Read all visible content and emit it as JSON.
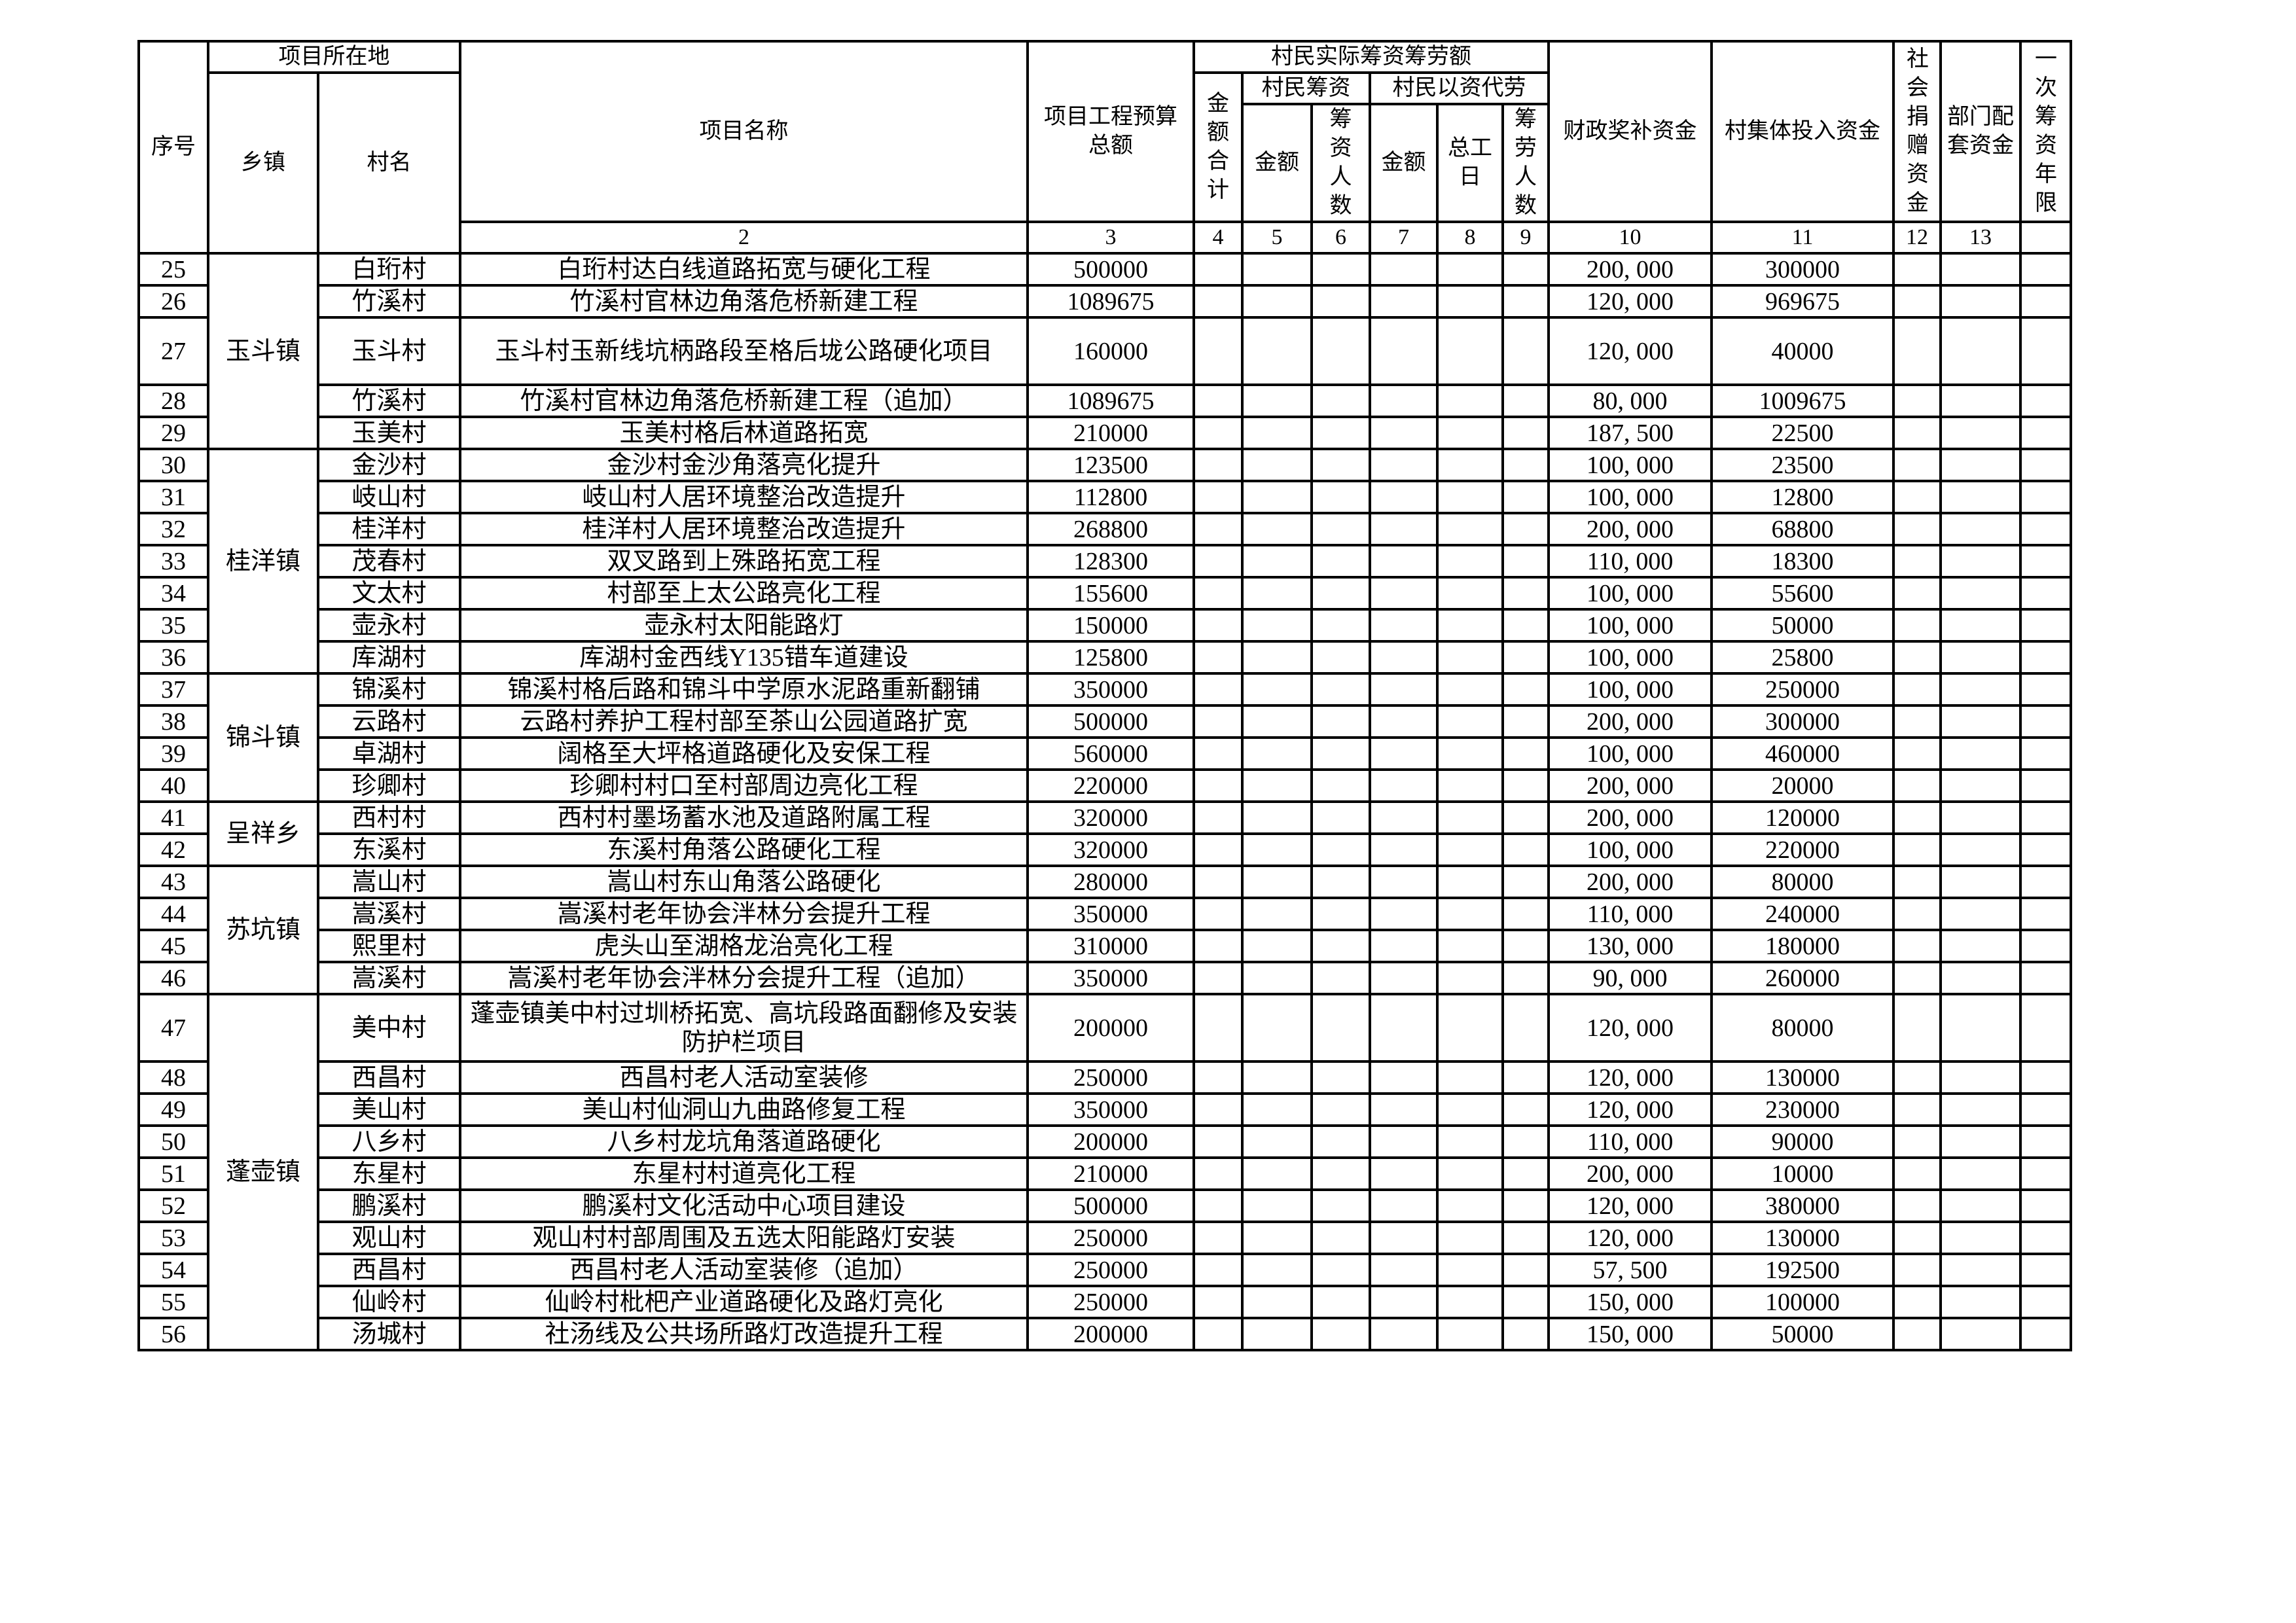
{
  "header": {
    "seq": "序号",
    "location": "项目所在地",
    "town": "乡镇",
    "village": "村名",
    "project": "项目名称",
    "budget": "项目工程预算总额",
    "villager_total": "村民实际筹资筹劳额",
    "amount_total": "金额合计",
    "villager_fund": "村民筹资",
    "labor_sub": "村民以资代劳",
    "amount1": "金额",
    "fund_people": "筹资人数",
    "amount2": "金额",
    "workdays": "总工日",
    "labor_people": "筹劳人数",
    "fiscal": "财政奖补资金",
    "collective": "村集体投入资金",
    "donation": "社会捐赠资金",
    "dept": "部门配套资金",
    "years": "一次筹资年限",
    "col_numbers": [
      "2",
      "3",
      "4",
      "5",
      "6",
      "7",
      "8",
      "9",
      "10",
      "11",
      "12",
      "13",
      ""
    ]
  },
  "towns": [
    {
      "name": "玉斗镇",
      "count": 5
    },
    {
      "name": "桂洋镇",
      "count": 7
    },
    {
      "name": "锦斗镇",
      "count": 4
    },
    {
      "name": "呈祥乡",
      "count": 2
    },
    {
      "name": "苏坑镇",
      "count": 4
    },
    {
      "name": "蓬壶镇",
      "count": 10
    }
  ],
  "rows": [
    {
      "no": "25",
      "village": "白珩村",
      "project": "白珩村达白线道路拓宽与硬化工程",
      "budget": "500000",
      "fiscal": "200, 000",
      "collective": "300000"
    },
    {
      "no": "26",
      "village": "竹溪村",
      "project": "竹溪村官林边角落危桥新建工程",
      "budget": "1089675",
      "fiscal": "120, 000",
      "collective": "969675"
    },
    {
      "no": "27",
      "village": "玉斗村",
      "project": "玉斗村玉新线坑柄路段至格后垅公路硬化项目",
      "budget": "160000",
      "fiscal": "120, 000",
      "collective": "40000",
      "tall": true
    },
    {
      "no": "28",
      "village": "竹溪村",
      "project": "竹溪村官林边角落危桥新建工程（追加）",
      "budget": "1089675",
      "fiscal": "80, 000",
      "collective": "1009675"
    },
    {
      "no": "29",
      "village": "玉美村",
      "project": "玉美村格后林道路拓宽",
      "budget": "210000",
      "fiscal": "187, 500",
      "collective": "22500"
    },
    {
      "no": "30",
      "village": "金沙村",
      "project": "金沙村金沙角落亮化提升",
      "budget": "123500",
      "fiscal": "100, 000",
      "collective": "23500"
    },
    {
      "no": "31",
      "village": "岐山村",
      "project": "岐山村人居环境整治改造提升",
      "budget": "112800",
      "fiscal": "100, 000",
      "collective": "12800"
    },
    {
      "no": "32",
      "village": "桂洋村",
      "project": "桂洋村人居环境整治改造提升",
      "budget": "268800",
      "fiscal": "200, 000",
      "collective": "68800"
    },
    {
      "no": "33",
      "village": "茂春村",
      "project": "双叉路到上殊路拓宽工程",
      "budget": "128300",
      "fiscal": "110, 000",
      "collective": "18300"
    },
    {
      "no": "34",
      "village": "文太村",
      "project": "村部至上太公路亮化工程",
      "budget": "155600",
      "fiscal": "100, 000",
      "collective": "55600"
    },
    {
      "no": "35",
      "village": "壶永村",
      "project": "壶永村太阳能路灯",
      "budget": "150000",
      "fiscal": "100, 000",
      "collective": "50000"
    },
    {
      "no": "36",
      "village": "库湖村",
      "project": "库湖村金西线Y135错车道建设",
      "budget": "125800",
      "fiscal": "100, 000",
      "collective": "25800"
    },
    {
      "no": "37",
      "village": "锦溪村",
      "project": "锦溪村格后路和锦斗中学原水泥路重新翻铺",
      "budget": "350000",
      "fiscal": "100, 000",
      "collective": "250000"
    },
    {
      "no": "38",
      "village": "云路村",
      "project": "云路村养护工程村部至茶山公园道路扩宽",
      "budget": "500000",
      "fiscal": "200, 000",
      "collective": "300000"
    },
    {
      "no": "39",
      "village": "卓湖村",
      "project": "阔格至大坪格道路硬化及安保工程",
      "budget": "560000",
      "fiscal": "100, 000",
      "collective": "460000"
    },
    {
      "no": "40",
      "village": "珍卿村",
      "project": "珍卿村村口至村部周边亮化工程",
      "budget": "220000",
      "fiscal": "200, 000",
      "collective": "20000"
    },
    {
      "no": "41",
      "village": "西村村",
      "project": "西村村墨场蓄水池及道路附属工程",
      "budget": "320000",
      "fiscal": "200, 000",
      "collective": "120000"
    },
    {
      "no": "42",
      "village": "东溪村",
      "project": "东溪村角落公路硬化工程",
      "budget": "320000",
      "fiscal": "100, 000",
      "collective": "220000"
    },
    {
      "no": "43",
      "village": "嵩山村",
      "project": "嵩山村东山角落公路硬化",
      "budget": "280000",
      "fiscal": "200, 000",
      "collective": "80000"
    },
    {
      "no": "44",
      "village": "嵩溪村",
      "project": "嵩溪村老年协会泮林分会提升工程",
      "budget": "350000",
      "fiscal": "110, 000",
      "collective": "240000"
    },
    {
      "no": "45",
      "village": "熙里村",
      "project": "虎头山至湖格龙治亮化工程",
      "budget": "310000",
      "fiscal": "130, 000",
      "collective": "180000"
    },
    {
      "no": "46",
      "village": "嵩溪村",
      "project": "嵩溪村老年协会泮林分会提升工程（追加）",
      "budget": "350000",
      "fiscal": "90, 000",
      "collective": "260000"
    },
    {
      "no": "47",
      "village": "美中村",
      "project": "蓬壶镇美中村过圳桥拓宽、高坑段路面翻修及安装防护栏项目",
      "budget": "200000",
      "fiscal": "120, 000",
      "collective": "80000",
      "tall": true
    },
    {
      "no": "48",
      "village": "西昌村",
      "project": "西昌村老人活动室装修",
      "budget": "250000",
      "fiscal": "120, 000",
      "collective": "130000"
    },
    {
      "no": "49",
      "village": "美山村",
      "project": "美山村仙洞山九曲路修复工程",
      "budget": "350000",
      "fiscal": "120, 000",
      "collective": "230000"
    },
    {
      "no": "50",
      "village": "八乡村",
      "project": "八乡村龙坑角落道路硬化",
      "budget": "200000",
      "fiscal": "110, 000",
      "collective": "90000"
    },
    {
      "no": "51",
      "village": "东星村",
      "project": "东星村村道亮化工程",
      "budget": "210000",
      "fiscal": "200, 000",
      "collective": "10000"
    },
    {
      "no": "52",
      "village": "鹏溪村",
      "project": "鹏溪村文化活动中心项目建设",
      "budget": "500000",
      "fiscal": "120, 000",
      "collective": "380000"
    },
    {
      "no": "53",
      "village": "观山村",
      "project": "观山村村部周围及五选太阳能路灯安装",
      "budget": "250000",
      "fiscal": "120, 000",
      "collective": "130000"
    },
    {
      "no": "54",
      "village": "西昌村",
      "project": "西昌村老人活动室装修（追加）",
      "budget": "250000",
      "fiscal": "57, 500",
      "collective": "192500"
    },
    {
      "no": "55",
      "village": "仙岭村",
      "project": "仙岭村枇杷产业道路硬化及路灯亮化",
      "budget": "250000",
      "fiscal": "150, 000",
      "collective": "100000"
    },
    {
      "no": "56",
      "village": "汤城村",
      "project": "社汤线及公共场所路灯改造提升工程",
      "budget": "200000",
      "fiscal": "150, 000",
      "collective": "50000"
    }
  ]
}
